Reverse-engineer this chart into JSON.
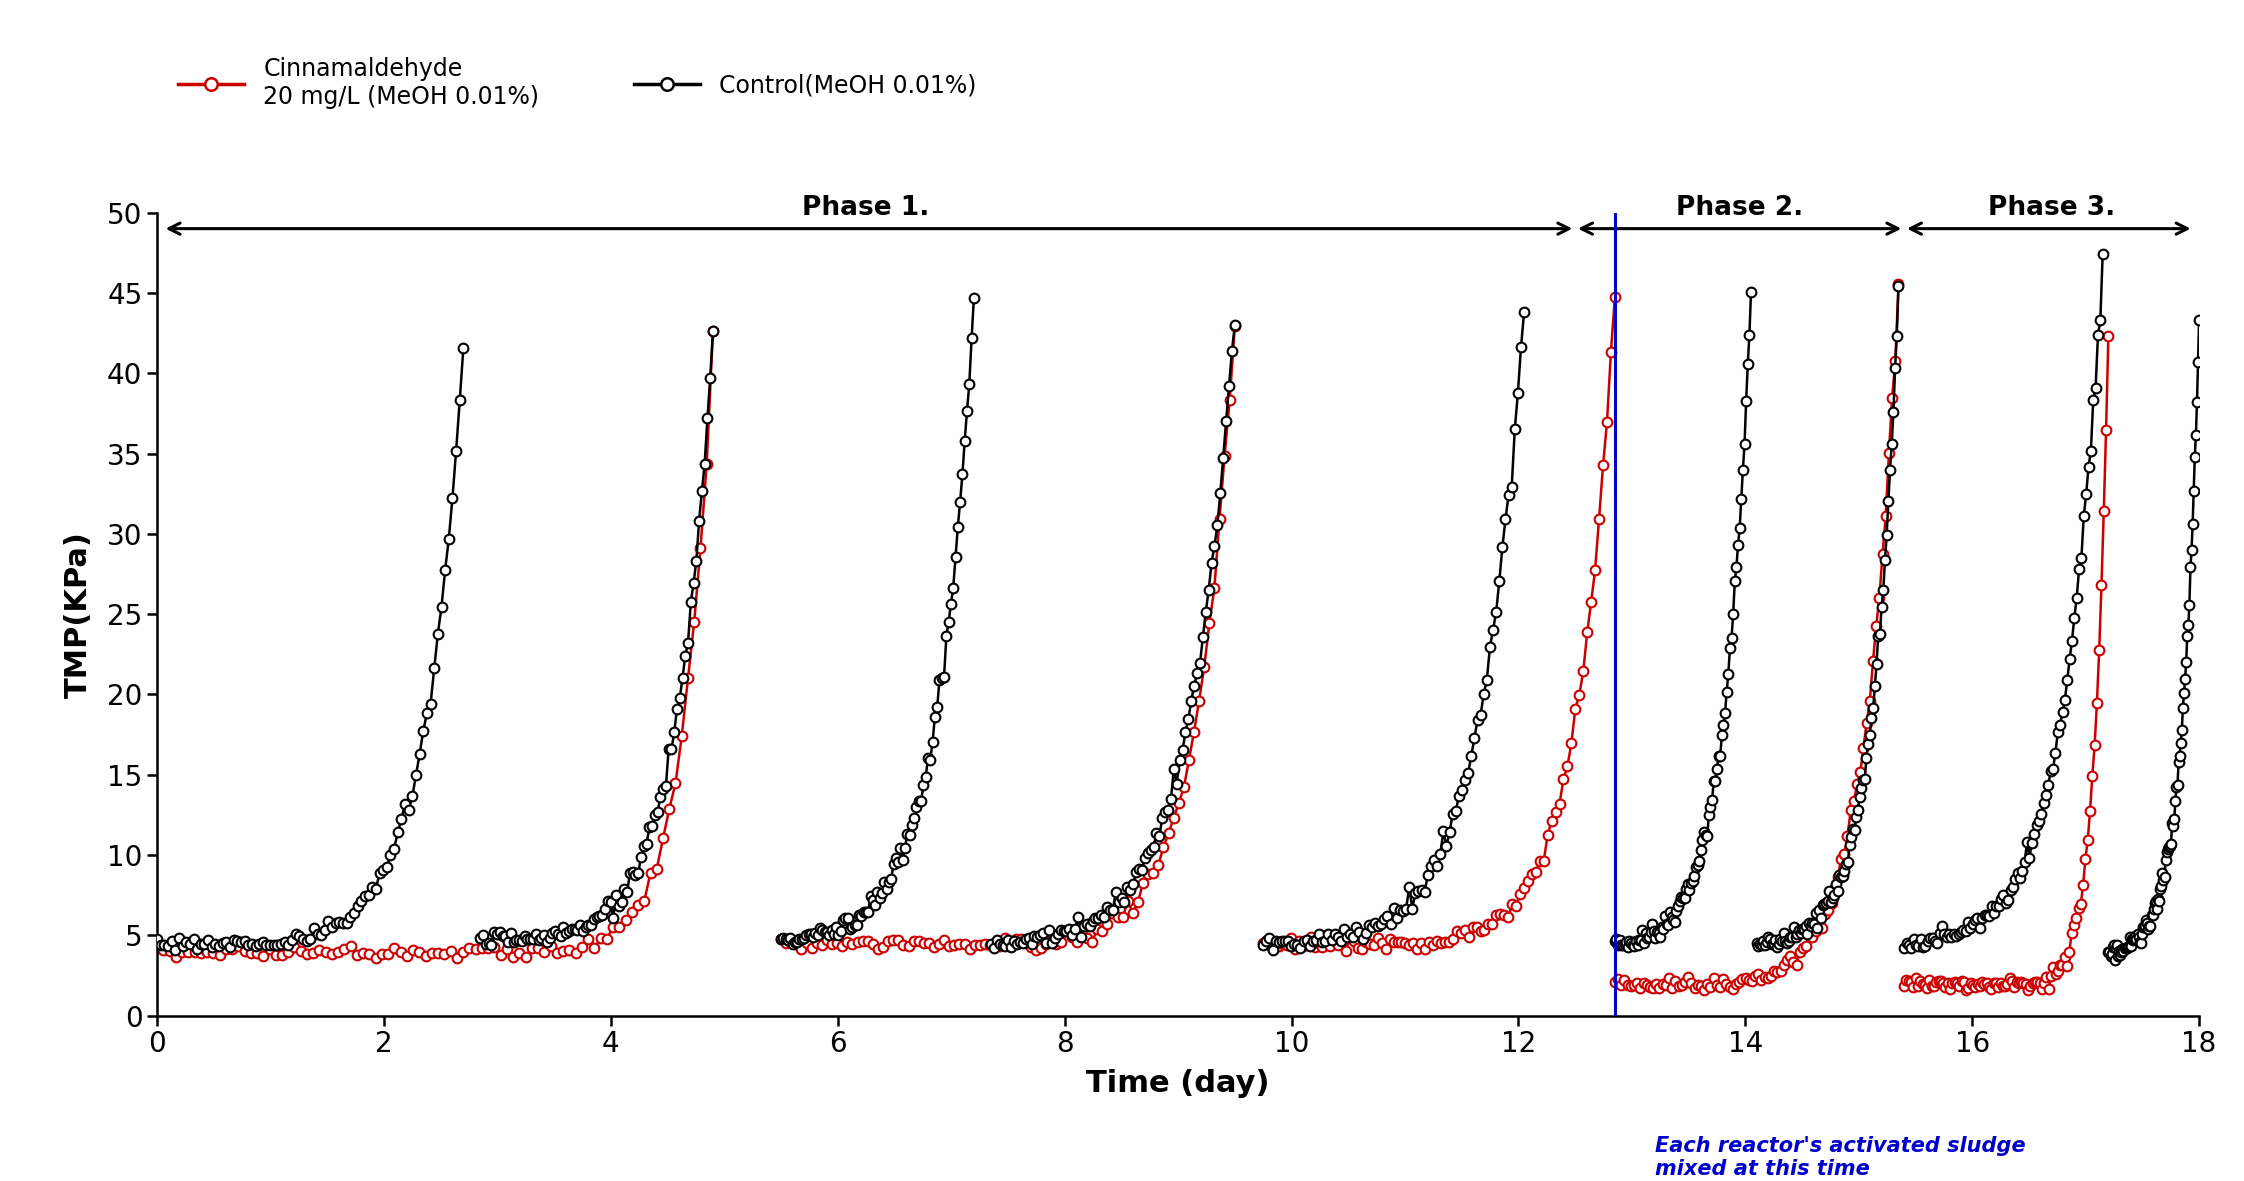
{
  "xlabel": "Time (day)",
  "ylabel": "TMP(KPa)",
  "xlim": [
    0,
    18
  ],
  "ylim": [
    0,
    50
  ],
  "xticks": [
    0,
    2,
    4,
    6,
    8,
    10,
    12,
    14,
    16,
    18
  ],
  "yticks": [
    0,
    5,
    10,
    15,
    20,
    25,
    30,
    35,
    40,
    45,
    50
  ],
  "vline_x": 12.85,
  "vline_color": "#0000cc",
  "phase1_label": "Phase 1.",
  "phase2_label": "Phase 2.",
  "phase3_label": "Phase 3.",
  "phase1_span": [
    0.0,
    12.5
  ],
  "phase2_span": [
    12.5,
    15.4
  ],
  "phase3_span": [
    15.4,
    18.0
  ],
  "legend_red": "Cinnamaldehyde\n20 mg/L (MeOH 0.01%)",
  "legend_black": "Control(MeOH 0.01%)",
  "annotation_text": "Each reactor's activated sludge\nmixed at this time",
  "annotation_color": "#0000cc",
  "background_color": "#ffffff",
  "red_color": "#cc0000",
  "black_color": "#000000",
  "black_cycles": [
    [
      0.0,
      2.7,
      1.0,
      4.5,
      41.5
    ],
    [
      2.85,
      4.9,
      3.3,
      4.8,
      42.5
    ],
    [
      5.5,
      7.2,
      5.6,
      4.8,
      44.5
    ],
    [
      7.35,
      9.5,
      7.5,
      4.5,
      43.5
    ],
    [
      9.75,
      12.05,
      10.1,
      4.5,
      44.0
    ],
    [
      12.85,
      14.05,
      12.9,
      4.5,
      45.0
    ],
    [
      14.1,
      15.35,
      14.2,
      4.5,
      44.8
    ],
    [
      15.4,
      17.15,
      15.5,
      4.5,
      47.5
    ],
    [
      17.2,
      18.0,
      17.25,
      4.0,
      43.0
    ]
  ],
  "red_cycles": [
    [
      0.0,
      4.9,
      3.6,
      4.0,
      43.0
    ],
    [
      5.5,
      9.5,
      7.8,
      4.5,
      43.5
    ],
    [
      9.75,
      12.85,
      11.2,
      4.5,
      45.0
    ],
    [
      12.85,
      15.35,
      13.9,
      2.0,
      45.5
    ],
    [
      15.4,
      17.2,
      16.6,
      2.0,
      43.0
    ]
  ]
}
